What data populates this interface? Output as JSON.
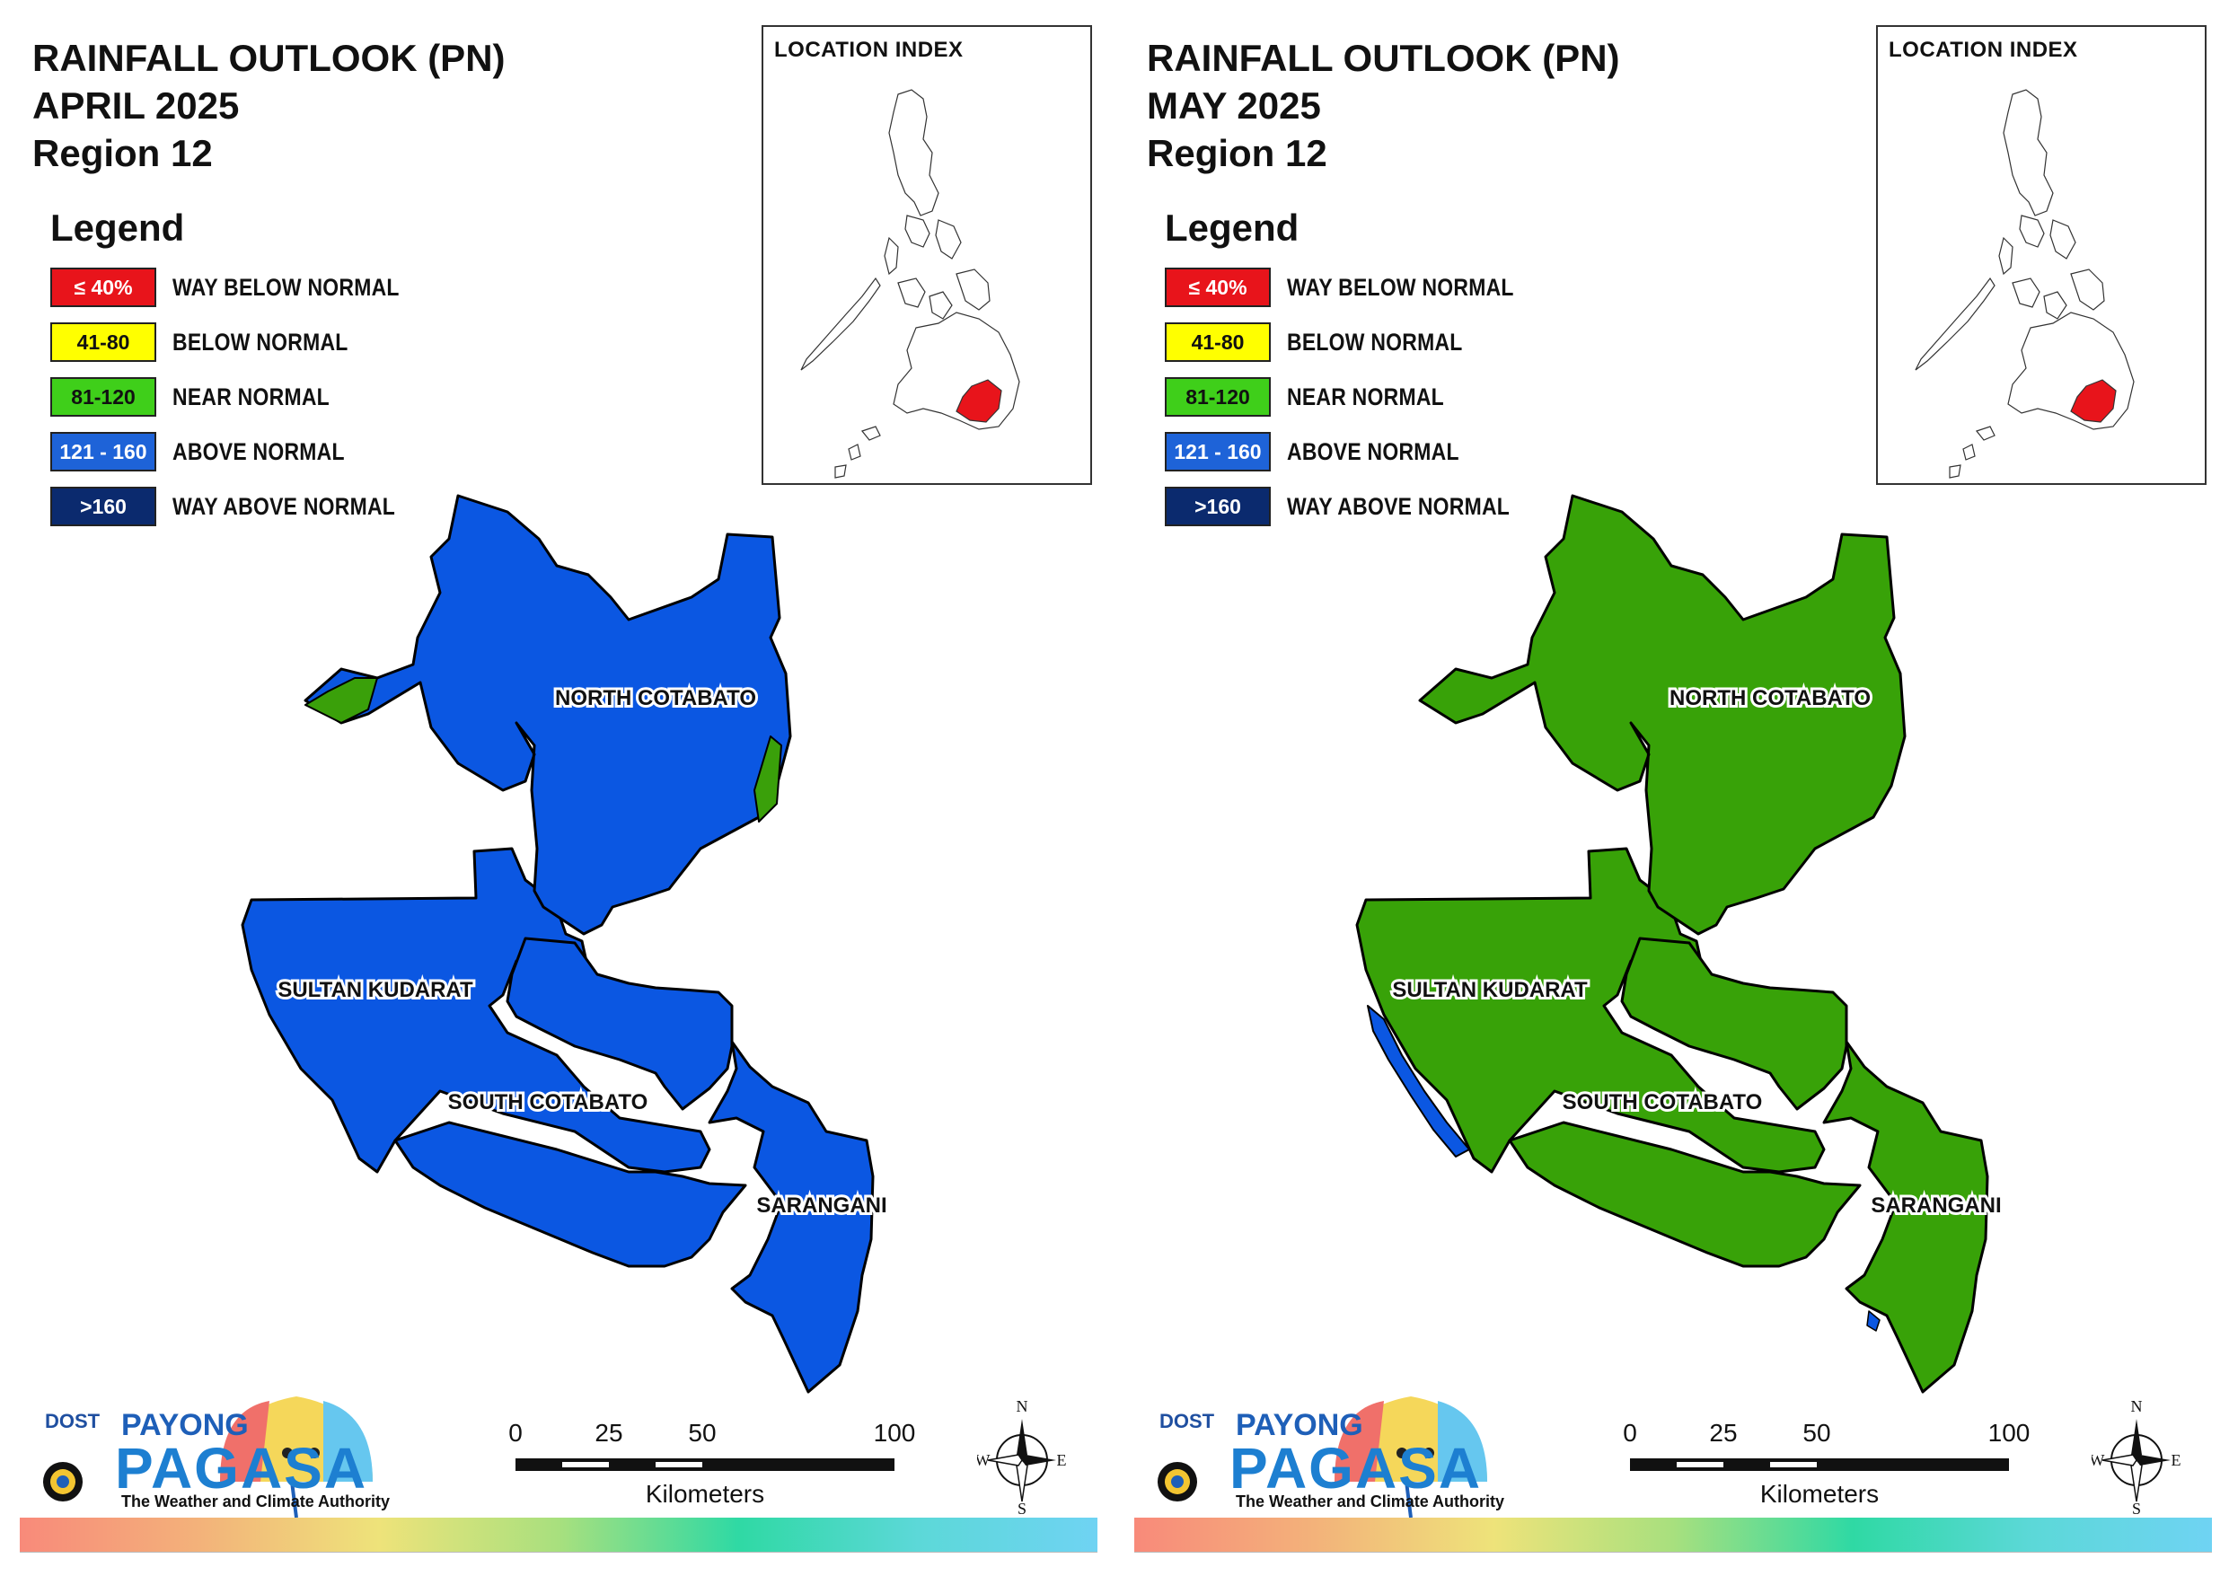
{
  "panels": [
    {
      "title_line1": "RAINFALL OUTLOOK (PN)",
      "title_line2": "APRIL 2025",
      "title_line3": "Region 12",
      "main_fill": "#0b57e2",
      "minor_fill": "#3aa00a",
      "provinces": {
        "north_cotabato": "NORTH COTABATO",
        "sultan_kudarat": "SULTAN KUDARAT",
        "south_cotabato": "SOUTH COTABATO",
        "sarangani": "SARANGANI"
      },
      "province_outlook": {
        "north_cotabato": "ABOVE NORMAL",
        "sultan_kudarat": "ABOVE NORMAL",
        "south_cotabato": "ABOVE NORMAL",
        "sarangani": "ABOVE NORMAL"
      }
    },
    {
      "title_line1": "RAINFALL OUTLOOK (PN)",
      "title_line2": "MAY 2025",
      "title_line3": "Region 12",
      "main_fill": "#38a208",
      "minor_fill": "#0b57e2",
      "provinces": {
        "north_cotabato": "NORTH COTABATO",
        "sultan_kudarat": "SULTAN KUDARAT",
        "south_cotabato": "SOUTH COTABATO",
        "sarangani": "SARANGANI"
      },
      "province_outlook": {
        "north_cotabato": "NEAR NORMAL",
        "sultan_kudarat": "NEAR NORMAL",
        "south_cotabato": "NEAR NORMAL",
        "sarangani": "NEAR NORMAL"
      }
    }
  ],
  "legend": {
    "heading": "Legend",
    "items": [
      {
        "range": "≤ 40%",
        "label": "WAY BELOW NORMAL",
        "color": "#e8141b",
        "text_color": "#ffffff"
      },
      {
        "range": "41-80",
        "label": "BELOW NORMAL",
        "color": "#ffff00",
        "text_color": "#111111"
      },
      {
        "range": "81-120",
        "label": "NEAR NORMAL",
        "color": "#3fcf1a",
        "text_color": "#111111"
      },
      {
        "range": "121 - 160",
        "label": "ABOVE NORMAL",
        "color": "#1e63d8",
        "text_color": "#ffffff"
      },
      {
        "range": ">160",
        "label": "WAY ABOVE NORMAL",
        "color": "#0b2a6e",
        "text_color": "#ffffff"
      }
    ]
  },
  "location_index": {
    "title": "LOCATION INDEX",
    "highlight_color": "#e8141b"
  },
  "scale_bar": {
    "ticks": [
      "0",
      "25",
      "50",
      "100"
    ],
    "unit": "Kilometers"
  },
  "compass": {
    "n": "N",
    "s": "S",
    "e": "E",
    "w": "W"
  },
  "branding": {
    "dost": "DOST",
    "payong": "PAYONG",
    "pagasa": "PAGASA",
    "tagline": "The Weather and Climate Authority"
  }
}
